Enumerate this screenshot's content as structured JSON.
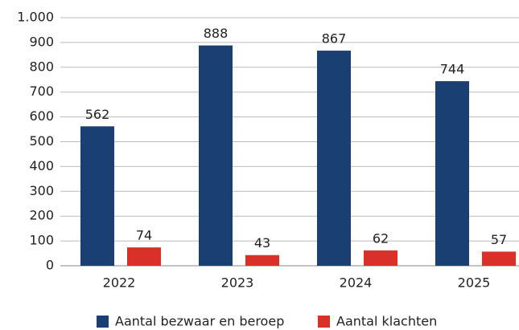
{
  "chart_data": {
    "type": "bar",
    "categories": [
      "2022",
      "2023",
      "2024",
      "2025"
    ],
    "series": [
      {
        "name": "Aantal bezwaar en beroep",
        "color": "#1a3f73",
        "values": [
          562,
          888,
          867,
          744
        ]
      },
      {
        "name": "Aantal klachten",
        "color": "#d9302a",
        "values": [
          74,
          43,
          62,
          57
        ]
      }
    ],
    "ylim": [
      0,
      1000
    ],
    "yticks": [
      0,
      100,
      200,
      300,
      400,
      500,
      600,
      700,
      800,
      900,
      {
        "value": 1000,
        "label": "1.000"
      }
    ],
    "grid": true,
    "legend": "bottom"
  }
}
